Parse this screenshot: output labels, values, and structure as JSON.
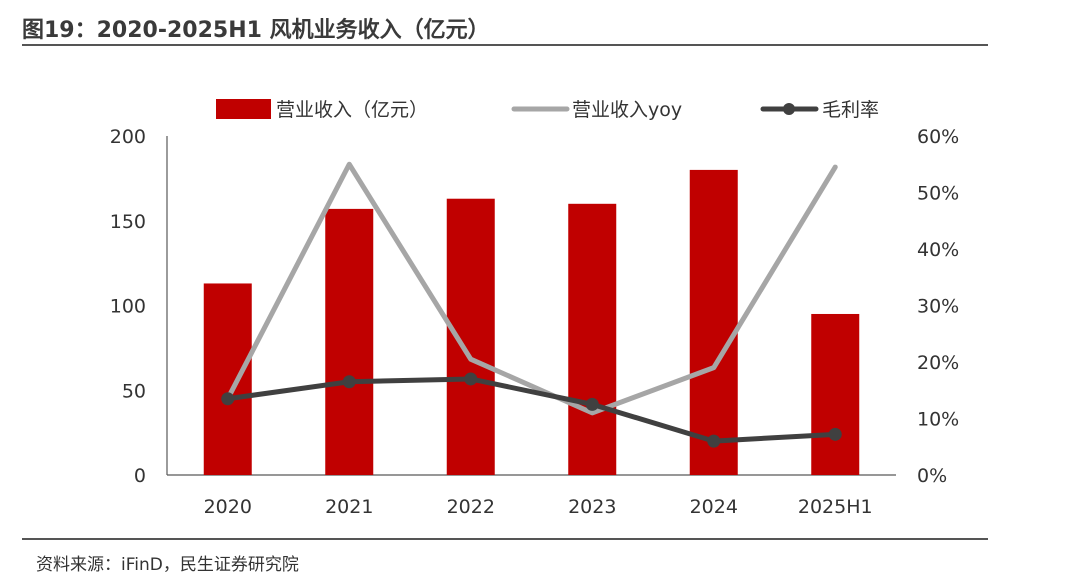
{
  "figure": {
    "title": "图19：2020-2025H1 风机业务收入（亿元）",
    "source": "资料来源：iFinD，民生证券研究院"
  },
  "colors": {
    "revenue_bar": "#c00000",
    "yoy_line": "#a6a6a6",
    "margin_line": "#404040",
    "axis": "#595959",
    "title_rule": "#555555"
  },
  "chart_data": {
    "type": "bar",
    "categories": [
      "2020",
      "2021",
      "2022",
      "2023",
      "2024",
      "2025H1"
    ],
    "left_axis": {
      "ylim": [
        0,
        200
      ],
      "ticks": [
        "0",
        "50",
        "100",
        "150",
        "200"
      ]
    },
    "right_axis": {
      "ylim": [
        0,
        0.6
      ],
      "ticks": [
        "0%",
        "10%",
        "20%",
        "30%",
        "40%",
        "50%",
        "60%"
      ]
    },
    "series": [
      {
        "name": "营业收入（亿元）",
        "kind": "bar",
        "axis": "left",
        "values": [
          113,
          157,
          163,
          160,
          180,
          95
        ]
      },
      {
        "name": "营业收入yoy",
        "kind": "line",
        "axis": "right",
        "values": [
          0.135,
          0.55,
          0.205,
          0.11,
          0.19,
          0.545
        ]
      },
      {
        "name": "毛利率",
        "kind": "line-marker",
        "axis": "right",
        "values": [
          0.135,
          0.165,
          0.17,
          0.125,
          0.06,
          0.072
        ]
      }
    ],
    "legend_position": "top",
    "grid": false
  }
}
